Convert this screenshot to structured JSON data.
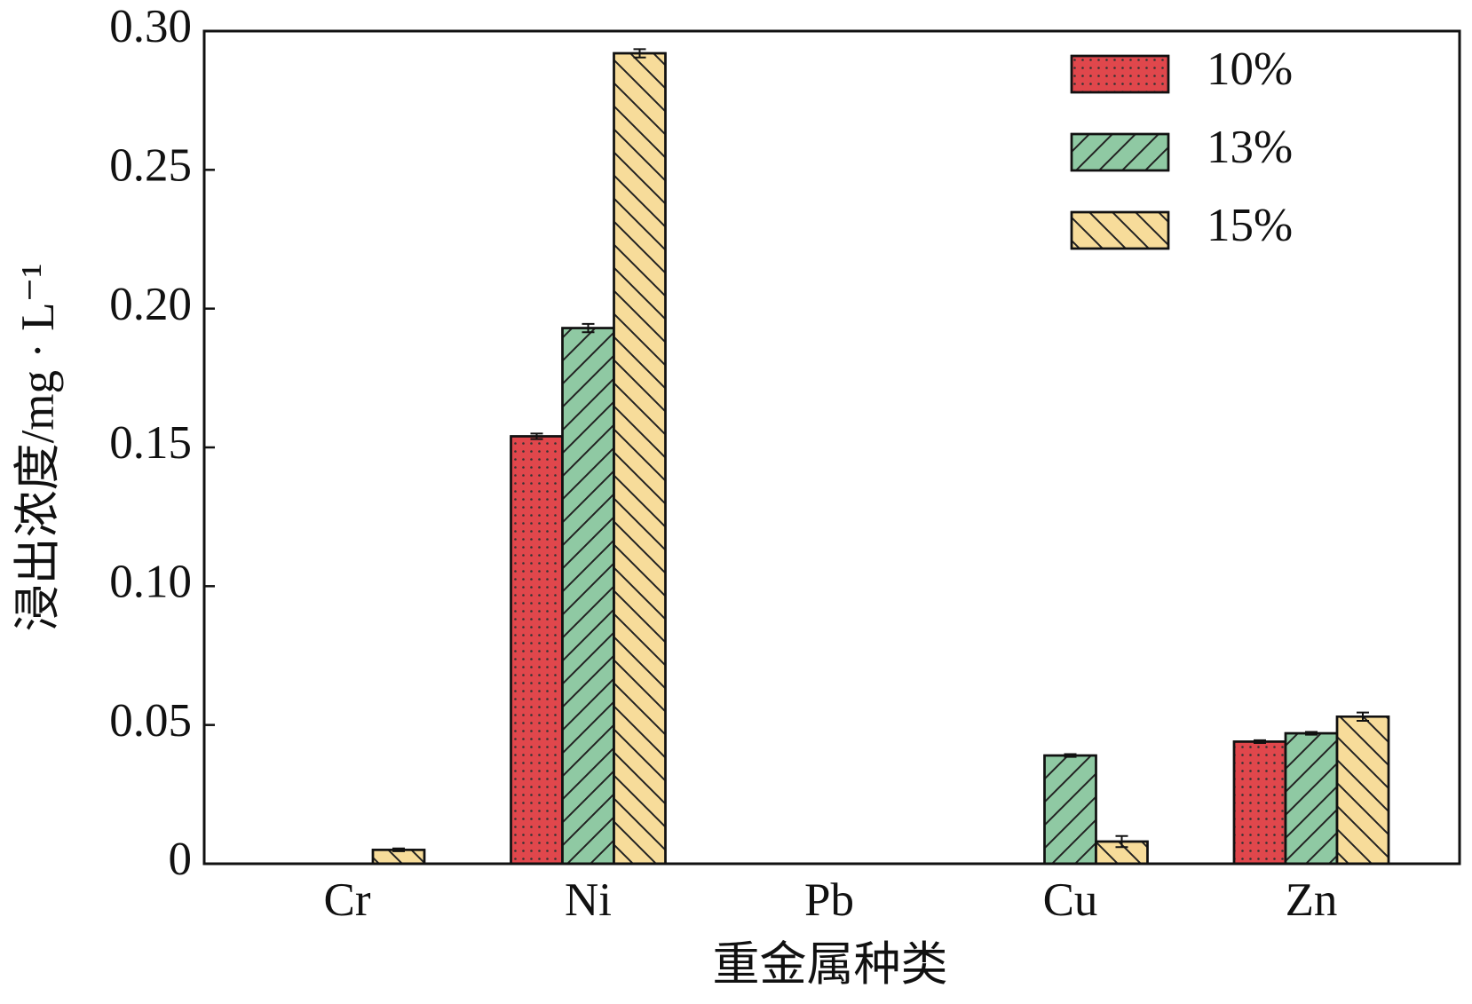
{
  "chart_data": {
    "type": "bar",
    "x_label": "重金属种类",
    "y_label": "浸出浓度/mg · L⁻¹",
    "categories": [
      "Cr",
      "Ni",
      "Pb",
      "Cu",
      "Zn"
    ],
    "series": [
      {
        "name": "10%",
        "color": "#e0474c",
        "hatch": "dots",
        "values": [
          null,
          0.154,
          null,
          null,
          0.044
        ],
        "errors": [
          null,
          0.001,
          null,
          null,
          0.0005
        ]
      },
      {
        "name": "13%",
        "color": "#8fc9a3",
        "hatch": "forward",
        "values": [
          null,
          0.193,
          null,
          0.039,
          0.047
        ],
        "errors": [
          null,
          0.0015,
          null,
          0.0005,
          0.0005
        ]
      },
      {
        "name": "15%",
        "color": "#f7dc9a",
        "hatch": "backward",
        "values": [
          0.005,
          0.292,
          null,
          0.008,
          0.053
        ],
        "errors": [
          0.0005,
          0.0015,
          null,
          0.002,
          0.0015
        ]
      }
    ],
    "ylim": [
      0,
      0.3
    ],
    "yticks": [
      0,
      0.05,
      {
        "value": 0.1,
        "label": "0.10"
      },
      0.15,
      {
        "value": 0.2,
        "label": "0.20"
      },
      0.25,
      {
        "value": 0.3,
        "label": "0.30"
      }
    ],
    "legend": "upper right"
  }
}
